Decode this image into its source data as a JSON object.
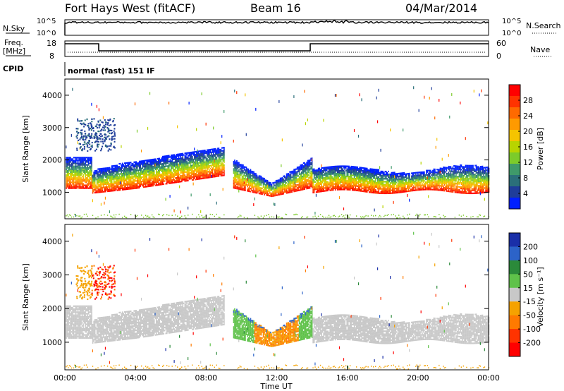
{
  "header": {
    "station": "Fort Hays West (fitACF)",
    "beam": "Beam 16",
    "date": "04/Mar/2014"
  },
  "top_panels": {
    "nsky_label": "N.Sky",
    "nsearch_label": "N.Search",
    "nsky_ticks": [
      "10^5",
      "10^0"
    ],
    "nsearch_ticks": [
      "10^5",
      "10^0"
    ],
    "freq_label": "Freq.",
    "freq_unit": "[MHz]",
    "freq_ticks": [
      "18",
      "8"
    ],
    "nave_label": "Nave",
    "nave_ticks": [
      "60",
      "0"
    ],
    "cpid_label": "CPID",
    "cpid_text": "normal (fast) 151 IF"
  },
  "chart_data": [
    {
      "type": "heatmap",
      "name": "power",
      "xlabel": "",
      "ylabel": "Slant Range [km]",
      "xlim": [
        0,
        24
      ],
      "ylim": [
        180,
        4500
      ],
      "yticks": [
        "1000",
        "2000",
        "3000",
        "4000"
      ],
      "colorbar": {
        "label": "Power [dB]",
        "ticks": [
          "28",
          "24",
          "20",
          "16",
          "12",
          "8",
          "4"
        ],
        "colors": [
          "#ff0000",
          "#ff3300",
          "#ff6a00",
          "#ff9a00",
          "#f5c400",
          "#b8d400",
          "#7ccb2a",
          "#3f9a6a",
          "#2b6f7a",
          "#1f3d9a",
          "#0020ff"
        ]
      }
    },
    {
      "type": "heatmap",
      "name": "velocity",
      "xlabel": "Time UT",
      "ylabel": "Slant Range [km]",
      "xlim": [
        0,
        24
      ],
      "ylim": [
        180,
        4500
      ],
      "xticks": [
        "00:00",
        "04:00",
        "08:00",
        "12:00",
        "16:00",
        "20:00",
        "00:00"
      ],
      "yticks": [
        "1000",
        "2000",
        "3000",
        "4000"
      ],
      "colorbar": {
        "label": "Velocity [m s⁻¹]",
        "ticks": [
          "200",
          "100",
          "50",
          "15",
          "-15",
          "-50",
          "-100",
          "-200"
        ],
        "colors": [
          "#1a2fa8",
          "#2c63c8",
          "#2b8a3a",
          "#5fc24a",
          "#c8c8c8",
          "#f5a200",
          "#ff7a00",
          "#ff3300",
          "#ff0000"
        ]
      }
    }
  ]
}
